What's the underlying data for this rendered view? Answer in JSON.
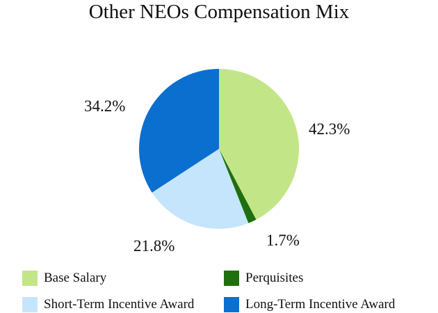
{
  "chart_data": {
    "type": "pie",
    "title": "Other NEOs Compensation Mix",
    "slices": [
      {
        "name": "Base Salary",
        "value": 42.3,
        "label": "42.3%",
        "color": "#c2e687"
      },
      {
        "name": "Perquisites",
        "value": 1.7,
        "label": "1.7%",
        "color": "#1f6f0f"
      },
      {
        "name": "Short-Term Incentive Award",
        "value": 21.8,
        "label": "21.8%",
        "color": "#c5e5fc"
      },
      {
        "name": "Long-Term Incentive Award",
        "value": 34.2,
        "label": "34.2%",
        "color": "#0b6fcf"
      }
    ],
    "start_angle": "12 o'clock",
    "direction": "clockwise",
    "legend_position": "bottom"
  }
}
